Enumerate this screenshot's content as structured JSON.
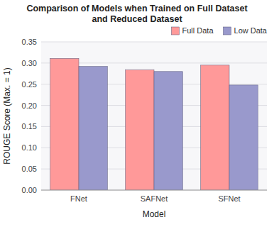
{
  "chart_data": {
    "type": "bar",
    "title": "Comparison of Models when Trained on Full Dataset\nand Reduced Dataset",
    "xlabel": "Model",
    "ylabel": "ROUGE Score (Max. = 1)",
    "categories": [
      "FNet",
      "SAFNet",
      "SFNet"
    ],
    "series": [
      {
        "name": "Full Data",
        "color": "#FF9999",
        "values": [
          0.311,
          0.284,
          0.295
        ]
      },
      {
        "name": "Low Data",
        "color": "#9999CC",
        "values": [
          0.292,
          0.28,
          0.248
        ]
      }
    ],
    "ylim": [
      0.0,
      0.35
    ],
    "yticks": [
      {
        "value": 0.0,
        "label": "0.00"
      },
      0.05,
      {
        "value": 0.1,
        "label": "0.10"
      },
      0.15,
      {
        "value": 0.2,
        "label": "0.20"
      },
      0.25,
      {
        "value": 0.3,
        "label": "0.30"
      },
      0.35
    ],
    "grid": true,
    "legend": "upper right"
  }
}
